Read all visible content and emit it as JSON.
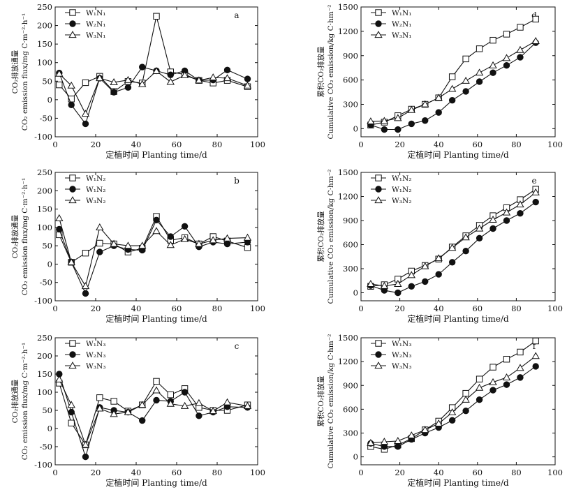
{
  "chart_data": [
    {
      "panel_label": "a",
      "type": "line",
      "ylabel_cn": "CO₂排放通量",
      "ylabel_en": "CO₂ emission flux/mg C·m⁻²·h⁻¹",
      "xlabel": "定植时间 Planting time/d",
      "xlim": [
        0,
        100
      ],
      "ylim": [
        -100,
        250
      ],
      "xticks": [
        "0",
        "20",
        "40",
        "60",
        "80",
        "100"
      ],
      "yticks": [
        "-100",
        "-50",
        "0",
        "50",
        "100",
        "150",
        "200",
        "250"
      ],
      "legend_position": "top-left",
      "series": [
        {
          "name": "W₁N₁",
          "marker": "square",
          "x": [
            2,
            8,
            15,
            22,
            29,
            36,
            43,
            50,
            57,
            64,
            71,
            78,
            85,
            95
          ],
          "y": [
            40,
            2,
            46,
            63,
            22,
            49,
            45,
            225,
            75,
            68,
            52,
            45,
            52,
            35
          ]
        },
        {
          "name": "W₂N₁",
          "marker": "circle",
          "x": [
            2,
            8,
            15,
            22,
            29,
            36,
            43,
            50,
            57,
            64,
            71,
            78,
            85,
            95
          ],
          "y": [
            72,
            -14,
            -65,
            58,
            20,
            33,
            88,
            78,
            67,
            78,
            52,
            53,
            80,
            56
          ]
        },
        {
          "name": "W₃N₁",
          "marker": "triangle",
          "x": [
            2,
            8,
            15,
            22,
            29,
            36,
            43,
            50,
            57,
            64,
            71,
            78,
            85,
            95
          ],
          "y": [
            70,
            38,
            -38,
            58,
            47,
            53,
            42,
            77,
            48,
            66,
            52,
            60,
            58,
            38
          ]
        }
      ]
    },
    {
      "panel_label": "b",
      "type": "line",
      "ylabel_cn": "CO₂排放通量",
      "ylabel_en": "CO₂ emission flux/mg C·m⁻²·h⁻¹",
      "xlabel": "定植时间 Planting time/d",
      "xlim": [
        0,
        100
      ],
      "ylim": [
        -100,
        250
      ],
      "xticks": [
        "0",
        "20",
        "40",
        "60",
        "80",
        "100"
      ],
      "yticks": [
        "-100",
        "-50",
        "0",
        "50",
        "100",
        "150",
        "200",
        "250"
      ],
      "legend_position": "top-left",
      "series": [
        {
          "name": "W₁N₂",
          "marker": "square",
          "x": [
            2,
            8,
            15,
            22,
            29,
            36,
            43,
            50,
            57,
            64,
            71,
            78,
            85,
            95
          ],
          "y": [
            80,
            5,
            30,
            57,
            55,
            33,
            43,
            130,
            65,
            72,
            55,
            75,
            63,
            45
          ]
        },
        {
          "name": "W₁N₂",
          "marker": "circle",
          "x": [
            2,
            8,
            15,
            22,
            29,
            36,
            43,
            50,
            57,
            64,
            71,
            78,
            85,
            95
          ],
          "y": [
            95,
            5,
            -80,
            33,
            50,
            40,
            38,
            120,
            75,
            103,
            47,
            60,
            55,
            60
          ]
        },
        {
          "name": "W₃N₂",
          "marker": "triangle",
          "x": [
            2,
            8,
            15,
            22,
            29,
            36,
            43,
            50,
            57,
            64,
            71,
            78,
            85,
            95
          ],
          "y": [
            125,
            5,
            -60,
            100,
            55,
            50,
            50,
            90,
            52,
            68,
            55,
            65,
            70,
            72
          ]
        }
      ]
    },
    {
      "panel_label": "c",
      "type": "line",
      "ylabel_cn": "CO₂排放通量",
      "ylabel_en": "CO₂ emission flux/mg C·m⁻²·h⁻¹",
      "xlabel": "定植时间 Planting time/d",
      "xlim": [
        0,
        100
      ],
      "ylim": [
        -100,
        250
      ],
      "xticks": [
        "0",
        "20",
        "40",
        "60",
        "80",
        "100"
      ],
      "yticks": [
        "-100",
        "-50",
        "0",
        "50",
        "100",
        "150",
        "200",
        "250"
      ],
      "legend_position": "top-left",
      "series": [
        {
          "name": "W₁N₃",
          "marker": "square",
          "x": [
            2,
            8,
            15,
            22,
            29,
            36,
            43,
            50,
            57,
            64,
            71,
            78,
            85,
            95
          ],
          "y": [
            125,
            15,
            -45,
            85,
            75,
            48,
            65,
            130,
            93,
            110,
            58,
            50,
            50,
            65
          ]
        },
        {
          "name": "W₂N₃",
          "marker": "circle",
          "x": [
            2,
            8,
            15,
            22,
            29,
            36,
            43,
            50,
            57,
            64,
            71,
            78,
            85,
            95
          ],
          "y": [
            150,
            45,
            -78,
            58,
            50,
            45,
            22,
            78,
            75,
            100,
            35,
            45,
            60,
            58
          ]
        },
        {
          "name": "W₃N₃",
          "marker": "triangle",
          "x": [
            2,
            8,
            15,
            22,
            29,
            36,
            43,
            50,
            57,
            64,
            71,
            78,
            85,
            95
          ],
          "y": [
            135,
            65,
            -45,
            55,
            40,
            45,
            65,
            105,
            68,
            62,
            70,
            48,
            72,
            62
          ]
        }
      ]
    },
    {
      "panel_label": "d",
      "type": "line",
      "ylabel_cn": "累积CO₂排放量",
      "ylabel_en": "Cumulative CO₂ emission/kg C·hm⁻²",
      "xlabel": "定植时间 Planting time/d",
      "xlim": [
        0,
        100
      ],
      "ylim": [
        -100,
        1500
      ],
      "xticks": [
        "0",
        "20",
        "40",
        "60",
        "80",
        "100"
      ],
      "yticks": [
        "0",
        "300",
        "600",
        "900",
        "1200",
        "1500"
      ],
      "legend_position": "top-left",
      "series": [
        {
          "name": "W₁N₁",
          "marker": "square",
          "x": [
            5,
            12,
            19,
            26,
            33,
            40,
            47,
            54,
            61,
            68,
            75,
            82,
            90
          ],
          "y": [
            45,
            80,
            160,
            240,
            300,
            380,
            640,
            860,
            985,
            1090,
            1165,
            1250,
            1350
          ]
        },
        {
          "name": "W₂N₁",
          "marker": "circle",
          "x": [
            5,
            12,
            19,
            26,
            33,
            40,
            47,
            54,
            61,
            68,
            75,
            82,
            90
          ],
          "y": [
            45,
            -10,
            -10,
            60,
            100,
            200,
            350,
            460,
            580,
            690,
            780,
            880,
            1060
          ]
        },
        {
          "name": "W₃N₁",
          "marker": "triangle",
          "x": [
            5,
            12,
            19,
            26,
            33,
            40,
            47,
            54,
            61,
            68,
            75,
            82,
            90
          ],
          "y": [
            90,
            95,
            130,
            230,
            300,
            380,
            490,
            590,
            690,
            780,
            870,
            970,
            1080
          ]
        }
      ]
    },
    {
      "panel_label": "e",
      "type": "line",
      "ylabel_cn": "累积CO₂排放量",
      "ylabel_en": "Cumulative CO₂ emission/kg C·hm⁻²",
      "xlabel": "定植时间 Planting time/d",
      "xlim": [
        0,
        100
      ],
      "ylim": [
        -100,
        1500
      ],
      "xticks": [
        "0",
        "20",
        "40",
        "60",
        "80",
        "100"
      ],
      "yticks": [
        "0",
        "300",
        "600",
        "900",
        "1200",
        "1500"
      ],
      "legend_position": "top-left",
      "series": [
        {
          "name": "W₁N₂",
          "marker": "square",
          "x": [
            5,
            12,
            19,
            26,
            33,
            40,
            47,
            54,
            61,
            68,
            75,
            82,
            90
          ],
          "y": [
            80,
            100,
            170,
            270,
            340,
            420,
            570,
            710,
            840,
            960,
            1060,
            1160,
            1290
          ]
        },
        {
          "name": "W₁N₂",
          "marker": "circle",
          "x": [
            5,
            12,
            19,
            26,
            33,
            40,
            47,
            54,
            61,
            68,
            75,
            82,
            90
          ],
          "y": [
            90,
            30,
            0,
            80,
            140,
            230,
            380,
            520,
            680,
            800,
            900,
            990,
            1130
          ]
        },
        {
          "name": "W₃N₂",
          "marker": "triangle",
          "x": [
            5,
            12,
            19,
            26,
            33,
            40,
            47,
            54,
            61,
            68,
            75,
            82,
            90
          ],
          "y": [
            110,
            85,
            110,
            220,
            330,
            430,
            560,
            690,
            800,
            910,
            1000,
            1100,
            1250
          ]
        }
      ]
    },
    {
      "panel_label": "f",
      "type": "line",
      "ylabel_cn": "累积CO₂排放量",
      "ylabel_en": "Cumulative CO₂ emission/kg C·hm⁻²",
      "xlabel": "定植时间 Planting time/d",
      "xlim": [
        0,
        100
      ],
      "ylim": [
        -100,
        1500
      ],
      "xticks": [
        "0",
        "20",
        "40",
        "60",
        "80",
        "100"
      ],
      "yticks": [
        "0",
        "300",
        "600",
        "900",
        "1200",
        "1500"
      ],
      "legend_position": "top-left",
      "series": [
        {
          "name": "W₁N₃",
          "marker": "square",
          "x": [
            5,
            12,
            19,
            26,
            33,
            40,
            47,
            54,
            61,
            68,
            75,
            82,
            90
          ],
          "y": [
            130,
            95,
            150,
            230,
            340,
            450,
            620,
            800,
            980,
            1130,
            1230,
            1320,
            1460
          ]
        },
        {
          "name": "W₂N₃",
          "marker": "circle",
          "x": [
            5,
            12,
            19,
            26,
            33,
            40,
            47,
            54,
            61,
            68,
            75,
            82,
            90
          ],
          "y": [
            170,
            130,
            130,
            220,
            300,
            370,
            460,
            580,
            720,
            840,
            910,
            1000,
            1140
          ]
        },
        {
          "name": "W₃N₃",
          "marker": "triangle",
          "x": [
            5,
            12,
            19,
            26,
            33,
            40,
            47,
            54,
            61,
            68,
            75,
            82,
            90
          ],
          "y": [
            175,
            190,
            200,
            270,
            340,
            420,
            560,
            720,
            870,
            940,
            1000,
            1120,
            1270
          ]
        }
      ]
    }
  ]
}
